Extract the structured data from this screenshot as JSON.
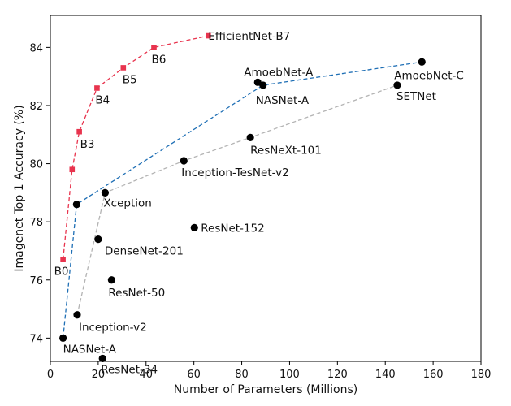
{
  "chart_data": {
    "type": "scatter",
    "title": "",
    "xlabel": "Number of Parameters (Millions)",
    "ylabel": "Imagenet Top 1 Accuracy (%)",
    "xlim": [
      0,
      180
    ],
    "ylim": [
      73.2,
      85.1
    ],
    "xticks": [
      0,
      20,
      40,
      60,
      80,
      100,
      120,
      140,
      160,
      180
    ],
    "yticks": [
      74,
      76,
      78,
      80,
      82,
      84
    ],
    "grid": false,
    "colors": {
      "efficientnet": "#e8344e",
      "frontier_blue": "#1f6fb5",
      "frontier_gray": "#b4b4b4",
      "points": "#000000"
    },
    "efficientnet": {
      "name": "EfficientNet-B7",
      "points": [
        {
          "label": "B0",
          "x": 5.3,
          "y": 76.7
        },
        {
          "label": "",
          "x": 9.1,
          "y": 79.8
        },
        {
          "label": "",
          "x": 12.1,
          "y": 81.1
        },
        {
          "label": "B3",
          "x": 12.1,
          "y": 81.1
        },
        {
          "label": "B4",
          "x": 19.5,
          "y": 82.6
        },
        {
          "label": "B5",
          "x": 30.5,
          "y": 83.3
        },
        {
          "label": "B6",
          "x": 43.3,
          "y": 84.0
        },
        {
          "label": "EfficientNet-B7",
          "x": 66.0,
          "y": 84.4
        }
      ]
    },
    "blue_frontier": [
      {
        "x": 5.3,
        "y": 74.0
      },
      {
        "x": 11.0,
        "y": 78.6
      },
      {
        "x": 88.9,
        "y": 82.7
      },
      {
        "x": 155.3,
        "y": 83.5
      }
    ],
    "gray_frontier": [
      {
        "x": 11.2,
        "y": 74.8
      },
      {
        "x": 22.9,
        "y": 79.0
      },
      {
        "x": 55.8,
        "y": 80.1
      },
      {
        "x": 83.6,
        "y": 80.9
      },
      {
        "x": 145.0,
        "y": 82.7
      }
    ],
    "models": [
      {
        "label": "NASNet-A",
        "x": 5.3,
        "y": 74.0
      },
      {
        "label": "",
        "x": 11.0,
        "y": 78.6
      },
      {
        "label": "Inception-v2",
        "x": 11.2,
        "y": 74.8
      },
      {
        "label": "ResNet-34",
        "x": 21.8,
        "y": 73.3
      },
      {
        "label": "DenseNet-201",
        "x": 20.0,
        "y": 77.4
      },
      {
        "label": "Xception",
        "x": 22.9,
        "y": 79.0
      },
      {
        "label": "ResNet-50",
        "x": 25.6,
        "y": 76.0
      },
      {
        "label": "ResNet-152",
        "x": 60.2,
        "y": 77.8
      },
      {
        "label": "Inception-TesNet-v2",
        "x": 55.8,
        "y": 80.1
      },
      {
        "label": "ResNeXt-101",
        "x": 83.6,
        "y": 80.9
      },
      {
        "label": "NASNet-A",
        "x": 88.9,
        "y": 82.7
      },
      {
        "label": "AmoebNet-A",
        "x": 86.7,
        "y": 82.8
      },
      {
        "label": "SETNet",
        "x": 145.0,
        "y": 82.7
      },
      {
        "label": "AmoebNet-C",
        "x": 155.3,
        "y": 83.5
      }
    ]
  }
}
